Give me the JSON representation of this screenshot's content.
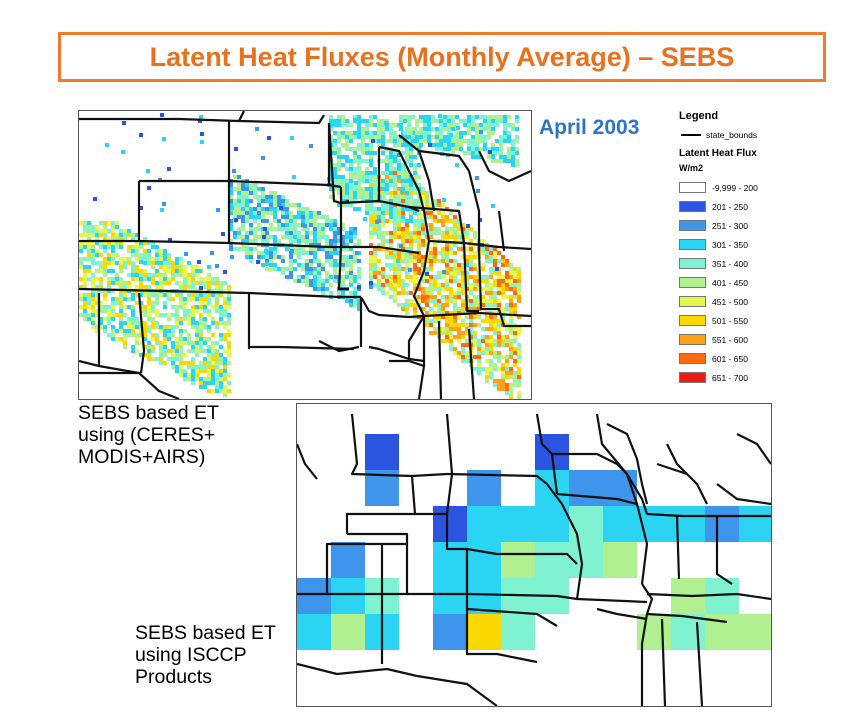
{
  "title": "Latent Heat Fluxes (Monthly Average) – SEBS",
  "month": "April 2003",
  "legend": {
    "title": "Legend",
    "line_label": "state_bounds",
    "subtitle": "Latent Heat Flux",
    "unit": "W/m2",
    "items": [
      {
        "label": "-9,999 - 200",
        "color": "#ffffff"
      },
      {
        "label": "201 - 250",
        "color": "#2b54e0"
      },
      {
        "label": "251 - 300",
        "color": "#3f94ec"
      },
      {
        "label": "301 - 350",
        "color": "#2ad4f2"
      },
      {
        "label": "351 - 400",
        "color": "#7ff2d2"
      },
      {
        "label": "401 - 450",
        "color": "#b0f090"
      },
      {
        "label": "451 - 500",
        "color": "#e6f850"
      },
      {
        "label": "501 - 550",
        "color": "#fbd800"
      },
      {
        "label": "551 - 600",
        "color": "#ffa21a"
      },
      {
        "label": "601 - 650",
        "color": "#ff6a10"
      },
      {
        "label": "651 - 700",
        "color": "#ee1a10"
      }
    ]
  },
  "captions": {
    "top_map": [
      "SEBS based ET",
      "using (CERES+",
      "MODIS+AIRS)"
    ],
    "bottom_map": [
      "SEBS based ET",
      "using ISCCP",
      "Products"
    ]
  }
}
